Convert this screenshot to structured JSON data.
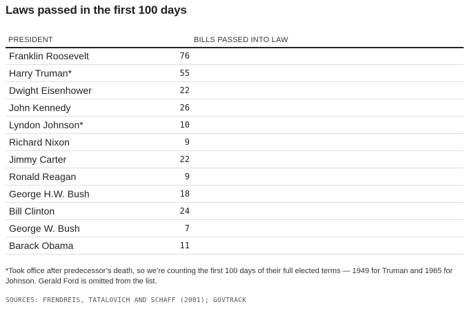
{
  "title": "Laws passed in the first 100 days",
  "headers": {
    "president": "PRESIDENT",
    "bills": "BILLS PASSED INTO LAW"
  },
  "chart_data": {
    "type": "table",
    "title": "Laws passed in the first 100 days",
    "columns": [
      "PRESIDENT",
      "BILLS PASSED INTO LAW"
    ],
    "rows": [
      {
        "name": "Franklin Roosevelt",
        "value": 76
      },
      {
        "name": "Harry Truman*",
        "value": 55
      },
      {
        "name": "Dwight Eisenhower",
        "value": 22
      },
      {
        "name": "John Kennedy",
        "value": 26
      },
      {
        "name": "Lyndon Johnson*",
        "value": 10
      },
      {
        "name": "Richard Nixon",
        "value": 9
      },
      {
        "name": "Jimmy Carter",
        "value": 22
      },
      {
        "name": "Ronald Reagan",
        "value": 9
      },
      {
        "name": "George H.W. Bush",
        "value": 18
      },
      {
        "name": "Bill Clinton",
        "value": 24
      },
      {
        "name": "George W. Bush",
        "value": 7
      },
      {
        "name": "Barack Obama",
        "value": 11
      }
    ]
  },
  "footnote": "*Took office after predecessor’s death, so we’re counting the first 100 days of their full elected terms — 1949 for Truman and 1965 for Johnson. Gerald Ford is omitted from the list.",
  "sources": "SOURCES: FRENDREIS, TATALOVICH AND SCHAFF (2001); GOVTRACK"
}
